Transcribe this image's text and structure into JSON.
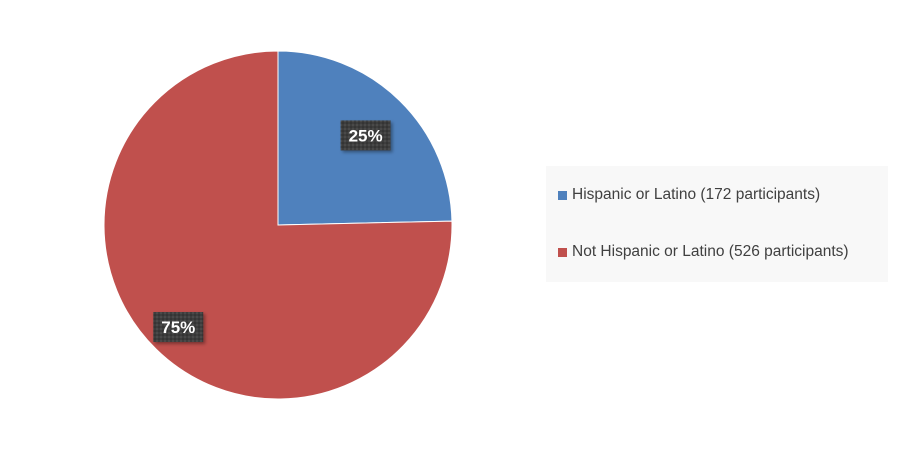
{
  "chart_data": {
    "type": "pie",
    "title": "",
    "categories": [
      "Hispanic or Latino (172 participants)",
      "Not Hispanic or Latino (526 participants)"
    ],
    "values": [
      172,
      526
    ],
    "data_labels": [
      "25%",
      "75%"
    ],
    "colors": [
      "#4f81bd",
      "#c0504d"
    ],
    "start_angle_deg": 0,
    "direction": "clockwise",
    "legend": {
      "placement": "right"
    },
    "label_box_color": "#3f3f3f"
  }
}
